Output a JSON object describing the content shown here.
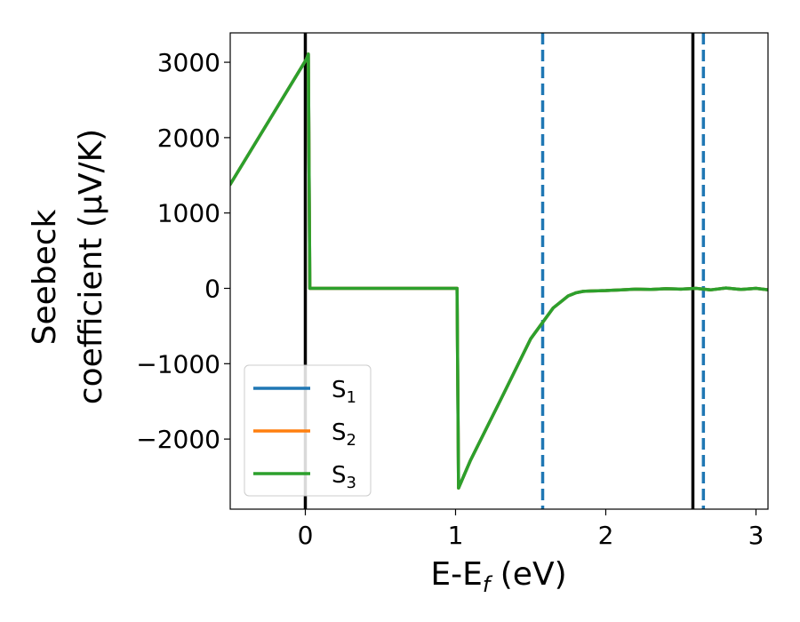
{
  "chart_data": {
    "type": "line",
    "xlabel": {
      "main": "E-E",
      "sub": "f",
      "tail": " (eV)"
    },
    "ylabel": {
      "line1": "Seebeck",
      "line2": "coefficient  (μV/K)"
    },
    "xlim": [
      -0.5,
      3.08
    ],
    "ylim": [
      -2930,
      3390
    ],
    "xticks": [
      {
        "value": 0,
        "label": "0"
      },
      {
        "value": 1,
        "label": "1"
      },
      {
        "value": 2,
        "label": "2"
      },
      {
        "value": 3,
        "label": "3"
      }
    ],
    "yticks": [
      {
        "value": 3000,
        "label": "3000"
      },
      {
        "value": 2000,
        "label": "2000"
      },
      {
        "value": 1000,
        "label": "1000"
      },
      {
        "value": 0,
        "label": "0"
      },
      {
        "value": -1000,
        "label": "−1000"
      },
      {
        "value": -2000,
        "label": "−2000"
      }
    ],
    "grid": false,
    "legend_position": "lower-left",
    "series": [
      {
        "name": "S",
        "subscript": "1",
        "color": "#1f77b4",
        "x": [
          -0.5,
          0.01,
          0.02,
          0.03,
          1.01,
          1.02,
          1.1,
          1.3,
          1.5,
          1.65,
          1.75,
          1.8,
          1.85,
          1.9,
          2.0,
          2.1,
          2.2,
          2.3,
          2.4,
          2.5,
          2.6,
          2.7,
          2.8,
          2.9,
          3.0,
          3.08
        ],
        "y": [
          1380,
          3050,
          3110,
          0,
          0,
          -2650,
          -2280,
          -1480,
          -670,
          -260,
          -100,
          -60,
          -40,
          -35,
          -30,
          -20,
          -10,
          -15,
          -5,
          -10,
          0,
          -20,
          5,
          -15,
          0,
          -20
        ]
      },
      {
        "name": "S",
        "subscript": "2",
        "color": "#ff7f0e",
        "x": [
          -0.5,
          0.01,
          0.02,
          0.03,
          1.01,
          1.02,
          1.1,
          1.3,
          1.5,
          1.65,
          1.75,
          1.8,
          1.85,
          1.9,
          2.0,
          2.1,
          2.2,
          2.3,
          2.4,
          2.5,
          2.6,
          2.7,
          2.8,
          2.9,
          3.0,
          3.08
        ],
        "y": [
          1380,
          3050,
          3110,
          0,
          0,
          -2650,
          -2280,
          -1480,
          -670,
          -260,
          -100,
          -60,
          -40,
          -35,
          -30,
          -20,
          -10,
          -15,
          -5,
          -10,
          0,
          -20,
          5,
          -15,
          0,
          -20
        ]
      },
      {
        "name": "S",
        "subscript": "3",
        "color": "#2ca02c",
        "x": [
          -0.5,
          0.01,
          0.02,
          0.03,
          1.01,
          1.02,
          1.1,
          1.3,
          1.5,
          1.65,
          1.75,
          1.8,
          1.85,
          1.9,
          2.0,
          2.1,
          2.2,
          2.3,
          2.4,
          2.5,
          2.6,
          2.7,
          2.8,
          2.9,
          3.0,
          3.08
        ],
        "y": [
          1380,
          3050,
          3110,
          0,
          0,
          -2650,
          -2280,
          -1480,
          -670,
          -260,
          -100,
          -60,
          -40,
          -35,
          -30,
          -20,
          -10,
          -15,
          -5,
          -10,
          0,
          -20,
          5,
          -15,
          0,
          -20
        ]
      }
    ],
    "vertical_lines": [
      {
        "x": 0.0,
        "style": "solid",
        "color": "#000000"
      },
      {
        "x": 2.58,
        "style": "solid",
        "color": "#000000"
      },
      {
        "x": 1.58,
        "style": "dashed",
        "color": "#1f77b4"
      },
      {
        "x": 2.65,
        "style": "dashed",
        "color": "#1f77b4"
      }
    ]
  }
}
